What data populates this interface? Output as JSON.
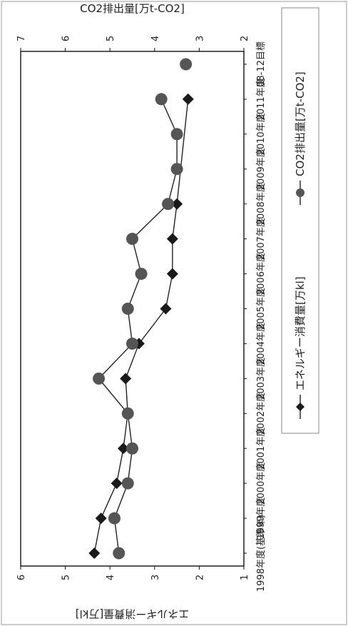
{
  "chart_data": {
    "type": "line",
    "orientation": "rotated-90",
    "categories": [
      "1998年度(基準年)",
      "1999年度",
      "2000年度",
      "2001年度",
      "2002年度",
      "2003年度",
      "2004年度",
      "2005年度",
      "2006年度",
      "2007年度",
      "2008年度",
      "2009年度",
      "2010年度",
      "2011年度",
      "08-12目標"
    ],
    "series": [
      {
        "name": "エネルギー消費量[万kl]",
        "axis": "left",
        "marker": "diamond",
        "color": "#1a1a1a",
        "values": [
          4.35,
          4.2,
          3.85,
          3.7,
          3.6,
          3.65,
          3.35,
          2.75,
          2.6,
          2.6,
          2.5,
          null,
          null,
          2.25,
          null
        ]
      },
      {
        "name": "CO2排出量[万t-CO2]",
        "axis": "right",
        "marker": "circle",
        "color": "#555555",
        "values": [
          4.8,
          4.9,
          4.6,
          4.5,
          4.6,
          5.25,
          4.5,
          4.6,
          4.3,
          4.5,
          3.7,
          3.5,
          3.5,
          3.85,
          3.3
        ]
      }
    ],
    "ylabel": "エネルギー消費量[万kl]",
    "ylim": [
      1,
      6
    ],
    "yticks": [
      "1",
      "2",
      "3",
      "4",
      "5",
      "6"
    ],
    "y2label": "CO2排出量[万t-CO2]",
    "y2lim": [
      2,
      7
    ],
    "y2ticks": [
      "2",
      "3",
      "4",
      "5",
      "6",
      "7"
    ],
    "legend": "right",
    "grid": false
  }
}
